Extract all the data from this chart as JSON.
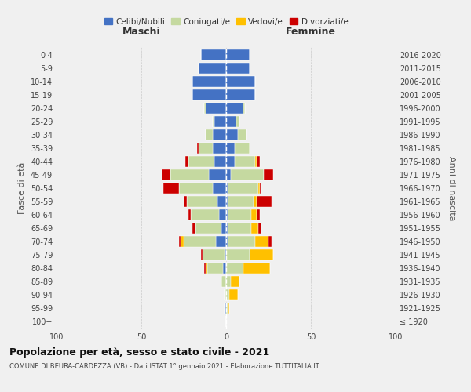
{
  "age_groups": [
    "100+",
    "95-99",
    "90-94",
    "85-89",
    "80-84",
    "75-79",
    "70-74",
    "65-69",
    "60-64",
    "55-59",
    "50-54",
    "45-49",
    "40-44",
    "35-39",
    "30-34",
    "25-29",
    "20-24",
    "15-19",
    "10-14",
    "5-9",
    "0-4"
  ],
  "birth_years": [
    "≤ 1920",
    "1921-1925",
    "1926-1930",
    "1931-1935",
    "1936-1940",
    "1941-1945",
    "1946-1950",
    "1951-1955",
    "1956-1960",
    "1961-1965",
    "1966-1970",
    "1971-1975",
    "1976-1980",
    "1981-1985",
    "1986-1990",
    "1991-1995",
    "1996-2000",
    "2001-2005",
    "2006-2010",
    "2011-2015",
    "2016-2020"
  ],
  "males": {
    "celibi": [
      0,
      1,
      0,
      0,
      2,
      1,
      6,
      3,
      4,
      5,
      8,
      10,
      7,
      8,
      8,
      7,
      12,
      20,
      20,
      16,
      15
    ],
    "coniugati": [
      0,
      0,
      1,
      3,
      9,
      13,
      19,
      15,
      17,
      18,
      20,
      23,
      15,
      8,
      4,
      1,
      1,
      0,
      0,
      0,
      0
    ],
    "vedovi": [
      0,
      0,
      0,
      0,
      1,
      0,
      2,
      0,
      0,
      0,
      0,
      0,
      0,
      0,
      0,
      0,
      0,
      0,
      0,
      0,
      0
    ],
    "divorziati": [
      0,
      0,
      0,
      0,
      1,
      1,
      1,
      2,
      1,
      2,
      9,
      5,
      2,
      1,
      0,
      0,
      0,
      0,
      0,
      0,
      0
    ]
  },
  "females": {
    "nubili": [
      0,
      0,
      0,
      0,
      0,
      0,
      1,
      1,
      1,
      1,
      1,
      3,
      5,
      5,
      7,
      6,
      10,
      17,
      17,
      14,
      14
    ],
    "coniugate": [
      0,
      1,
      2,
      3,
      10,
      14,
      16,
      14,
      14,
      15,
      18,
      19,
      12,
      9,
      5,
      2,
      1,
      0,
      0,
      0,
      0
    ],
    "vedove": [
      0,
      1,
      5,
      5,
      16,
      14,
      8,
      4,
      3,
      2,
      1,
      0,
      1,
      0,
      0,
      0,
      0,
      0,
      0,
      0,
      0
    ],
    "divorziate": [
      0,
      0,
      0,
      0,
      0,
      0,
      2,
      2,
      2,
      9,
      1,
      6,
      2,
      0,
      0,
      0,
      0,
      0,
      0,
      0,
      0
    ]
  },
  "colors": {
    "celibi": "#4472C4",
    "coniugati": "#c5d9a0",
    "vedovi": "#ffc000",
    "divorziati": "#cc0000"
  },
  "title": "Popolazione per età, sesso e stato civile - 2021",
  "subtitle": "COMUNE DI BEURA-CARDEZZA (VB) - Dati ISTAT 1° gennaio 2021 - Elaborazione TUTTITALIA.IT",
  "xlabel_left": "Maschi",
  "xlabel_right": "Femmine",
  "ylabel_left": "Fasce di età",
  "ylabel_right": "Anni di nascita",
  "xlim": 100,
  "legend_labels": [
    "Celibi/Nubili",
    "Coniugati/e",
    "Vedovi/e",
    "Divorziati/e"
  ],
  "background_color": "#f0f0f0"
}
